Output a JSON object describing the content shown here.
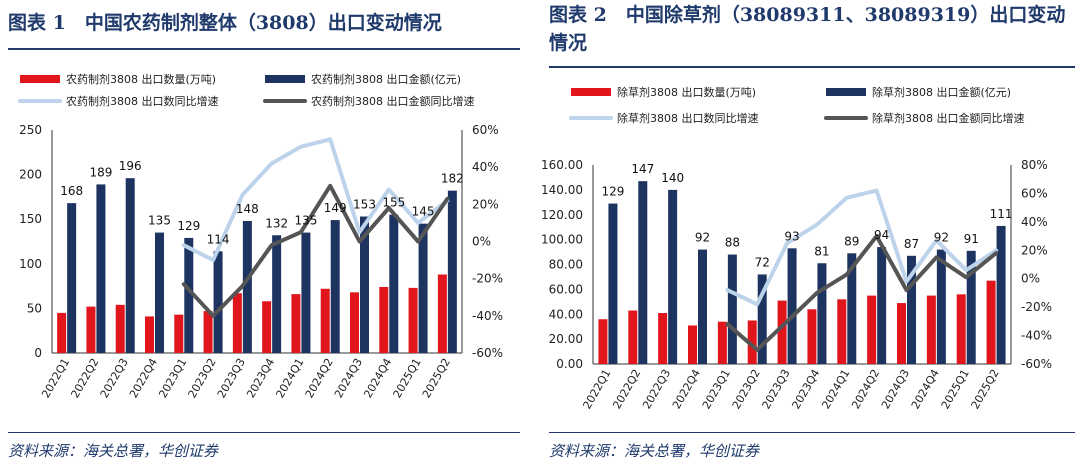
{
  "panels": [
    {
      "title_line1": "图表 1　中国农药制剂整体（3808）出口变动情况",
      "title_line2": "",
      "source": "资料来源：海关总署，华创证券"
    },
    {
      "title_line1": "图表 2　中国除草剂（38089311、38089319）出口变动",
      "title_line2": "情况",
      "source": "资料来源：海关总署，华创证券"
    }
  ],
  "colors": {
    "red": "#e1161d",
    "navy": "#1d3461",
    "light_blue": "#bcd3ea",
    "gray": "#555555",
    "title": "#1f3a6b"
  },
  "chart_data": [
    {
      "type": "bar",
      "categories": [
        "2022Q1",
        "2022Q2",
        "2022Q3",
        "2022Q4",
        "2023Q1",
        "2023Q2",
        "2023Q3",
        "2023Q4",
        "2024Q1",
        "2024Q2",
        "2024Q3",
        "2024Q4",
        "2025Q1",
        "2025Q2"
      ],
      "ylim": [
        0,
        250
      ],
      "y_ticks": [
        "0",
        "50",
        "100",
        "150",
        "200",
        "250"
      ],
      "y2lim": [
        -60,
        60
      ],
      "y2_ticks": [
        "-60%",
        "-40%",
        "-20%",
        "0%",
        "20%",
        "40%",
        "60%"
      ],
      "legend_position": "top",
      "series": [
        {
          "name": "农药制剂3808 出口数量(万吨)",
          "kind": "bar",
          "axis": "left",
          "values": [
            45,
            52,
            54,
            41,
            43,
            47,
            67,
            58,
            66,
            72,
            68,
            74,
            73,
            88
          ]
        },
        {
          "name": "农药制剂3808 出口金额(亿元)",
          "kind": "bar",
          "axis": "left",
          "values": [
            168,
            189,
            196,
            135,
            129,
            114,
            148,
            132,
            135,
            149,
            153,
            155,
            145,
            182
          ],
          "labels": [
            "168",
            "189",
            "196",
            "135",
            "129",
            "114",
            "148",
            "132",
            "135",
            "149",
            "153",
            "155",
            "145",
            "182"
          ]
        },
        {
          "name": "农药制剂3808 出口数同比增速",
          "kind": "line",
          "axis": "right",
          "values": [
            null,
            null,
            null,
            null,
            -2,
            -10,
            25,
            42,
            51,
            55,
            5,
            28,
            10,
            22
          ]
        },
        {
          "name": "农药制剂3808 出口金额同比增速",
          "kind": "line",
          "axis": "right",
          "values": [
            null,
            null,
            null,
            null,
            -23,
            -40,
            -24,
            -2,
            5,
            30,
            0,
            18,
            0,
            23
          ]
        }
      ]
    },
    {
      "type": "bar",
      "categories": [
        "2022Q1",
        "2022Q2",
        "2022Q3",
        "2022Q4",
        "2023Q1",
        "2023Q2",
        "2023Q3",
        "2023Q4",
        "2024Q1",
        "2024Q2",
        "2024Q3",
        "2024Q4",
        "2025Q1",
        "2025Q2"
      ],
      "ylim": [
        0,
        160
      ],
      "y_ticks": [
        "0.00",
        "20.00",
        "40.00",
        "60.00",
        "80.00",
        "100.00",
        "120.00",
        "140.00",
        "160.00"
      ],
      "y2lim": [
        -60,
        80
      ],
      "y2_ticks": [
        "-60%",
        "-40%",
        "-20%",
        "0%",
        "20%",
        "40%",
        "60%",
        "80%"
      ],
      "legend_position": "top",
      "series": [
        {
          "name": "除草剂3808 出口数量(万吨)",
          "kind": "bar",
          "axis": "left",
          "values": [
            36,
            43,
            41,
            31,
            34,
            35,
            51,
            44,
            52,
            55,
            49,
            55,
            56,
            67
          ]
        },
        {
          "name": "除草剂3808 出口金额(亿元)",
          "kind": "bar",
          "axis": "left",
          "values": [
            129,
            147,
            140,
            92,
            88,
            72,
            93,
            81,
            89,
            94,
            87,
            92,
            91,
            111
          ],
          "labels": [
            "129",
            "147",
            "140",
            "92",
            "88",
            "72",
            "93",
            "81",
            "89",
            "94",
            "87",
            "92",
            "91",
            "111"
          ]
        },
        {
          "name": "除草剂3808 出口数同比增速",
          "kind": "line",
          "axis": "right",
          "values": [
            null,
            null,
            null,
            null,
            -8,
            -18,
            25,
            38,
            57,
            62,
            -2,
            27,
            6,
            20
          ]
        },
        {
          "name": "除草剂3808 出口金额同比增速",
          "kind": "line",
          "axis": "right",
          "values": [
            null,
            null,
            null,
            null,
            -32,
            -50,
            -30,
            -10,
            3,
            30,
            -8,
            15,
            1,
            18
          ]
        }
      ]
    }
  ]
}
